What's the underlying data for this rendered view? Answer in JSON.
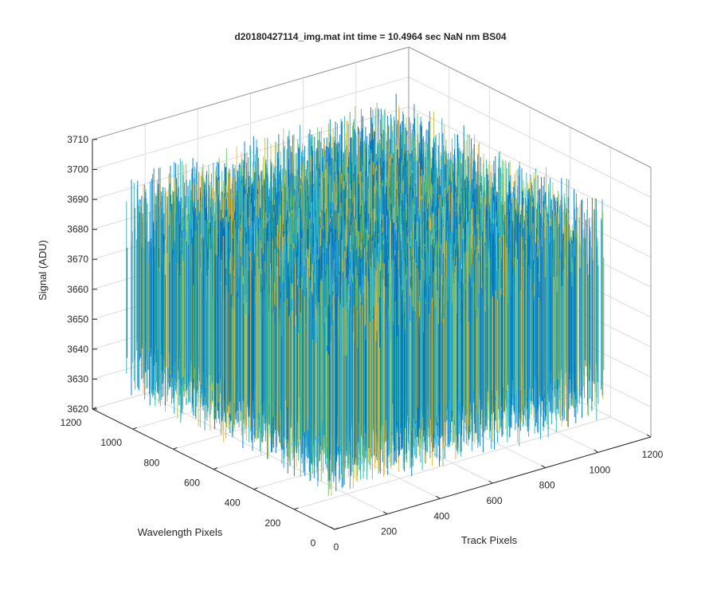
{
  "chart_data": {
    "type": "surface-3d",
    "title": "d20180427114_img.mat int time = 10.4964 sec  NaN nm BS04",
    "xlabel": "Track Pixels",
    "ylabel": "Wavelength Pixels",
    "zlabel": "Signal (ADU)",
    "xlim": [
      0,
      1200
    ],
    "ylim": [
      0,
      1200
    ],
    "zlim": [
      3620,
      3710
    ],
    "xticks": [
      "0",
      "200",
      "400",
      "600",
      "800",
      "1000",
      "1200"
    ],
    "yticks": [
      "0",
      "200",
      "400",
      "600",
      "800",
      "1000",
      "1200"
    ],
    "zticks": [
      "3620",
      "3630",
      "3640",
      "3650",
      "3660",
      "3670",
      "3680",
      "3690",
      "3700",
      "3710"
    ],
    "data_extent": {
      "x": [
        0,
        1024
      ],
      "y": [
        0,
        1024
      ]
    },
    "z_mean": 3660,
    "z_range": [
      3630,
      3705
    ],
    "grid": true,
    "colormap": [
      "#0072BD",
      "#1f9fd0",
      "#2ab5b0",
      "#6cc26a",
      "#b7c14a",
      "#e9b83a"
    ]
  }
}
